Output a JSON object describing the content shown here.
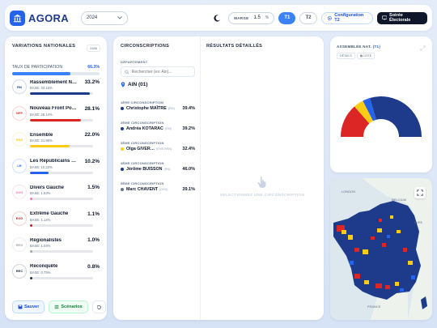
{
  "app": {
    "name": "AGORA",
    "year": "2024"
  },
  "header": {
    "marge_label": "MARGE",
    "marge_value": "1.5",
    "marge_unit": "%",
    "tab_t1": "T1",
    "tab_t2": "T2",
    "config_label": "Configuration T2",
    "soiree_label": "Soirée Électorale"
  },
  "left": {
    "title": "VARIATIONS NATIONALES",
    "badge": "2486",
    "taux_label": "TAUX DE PARTICIPATION",
    "taux_value": "66.3%",
    "taux_fraction": 0.663,
    "parties": [
      {
        "logo": "RN",
        "name": "Rassemblement N…",
        "pct": "33.2%",
        "base": "BASE: 33.16%",
        "share": 0.332,
        "color": "#1e3a8a"
      },
      {
        "logo": "NFP",
        "name": "Nouveau Front Po…",
        "pct": "28.1%",
        "base": "BASE: 28.14%",
        "share": 0.281,
        "color": "#dc2626"
      },
      {
        "logo": "ENS",
        "name": "Ensemble",
        "pct": "22.0%",
        "base": "BASE: 21.98%",
        "share": 0.22,
        "color": "#facc15"
      },
      {
        "logo": "LR",
        "name": "Les Républicains …",
        "pct": "10.2%",
        "base": "BASE: 10.23%",
        "share": 0.102,
        "color": "#2563eb"
      },
      {
        "logo": "DVG",
        "name": "Divers Gauche",
        "pct": "1.5%",
        "base": "BASE: 1.53%",
        "share": 0.015,
        "color": "#f472b6"
      },
      {
        "logo": "EXG",
        "name": "Extrême Gauche",
        "pct": "1.1%",
        "base": "BASE: 1.14%",
        "share": 0.011,
        "color": "#b91c1c"
      },
      {
        "logo": "REG",
        "name": "Régionalistes",
        "pct": "1.0%",
        "base": "BASE: 1.04%",
        "share": 0.01,
        "color": "#a3a3a3"
      },
      {
        "logo": "REC",
        "name": "Reconquête",
        "pct": "0.8%",
        "base": "BASE: 0.75%",
        "share": 0.008,
        "color": "#1e293b"
      }
    ],
    "save_label": "Sauver",
    "scenarios_label": "Scénarios"
  },
  "middle": {
    "circo_title": "CIRCONSCRIPTIONS",
    "results_title": "RÉSULTATS DÉTAILLÉS",
    "dept_label": "DÉPARTEMENT",
    "search_placeholder": "Rechercher (ex: Ain)...",
    "dept_name": "AIN (01)",
    "circos": [
      {
        "label": "1ÈRE CIRCONSCRIPTION",
        "candidate": "Christophe MAÎTRE",
        "nuance": "(RN)",
        "pct": "39.4%",
        "color": "#1e3a8a"
      },
      {
        "label": "2ÈME CIRCONSCRIPTION",
        "candidate": "Andréa KOTARAC",
        "nuance": "(RN)",
        "pct": "39.2%",
        "color": "#1e3a8a"
      },
      {
        "label": "3ÈME CIRCONSCRIPTION",
        "candidate": "Olga GIVER…",
        "nuance": "(ENS REN)",
        "pct": "32.4%",
        "color": "#facc15"
      },
      {
        "label": "4ÈME CIRCONSCRIPTION",
        "candidate": "Jérôme BUISSON",
        "nuance": "(RN)",
        "pct": "46.0%",
        "color": "#1e3a8a"
      },
      {
        "label": "5ÈME CIRCONSCRIPTION",
        "candidate": "Marc CHAVENT",
        "nuance": "(DSV)",
        "pct": "39.1%",
        "color": "#64748b"
      }
    ],
    "empty_text": "SÉLECTIONNEZ UNE CIRCONSCRIPTION"
  },
  "assembly": {
    "title": "ASSEMBLÉE NAT.",
    "round": "(T1)",
    "tab_details": "DÉTAILS",
    "tab_list": "LISTE",
    "chart_data": {
      "type": "pie",
      "shape": "half-donut",
      "segments": [
        {
          "color": "#dc2626",
          "share": 0.27
        },
        {
          "color": "#facc15",
          "share": 0.08
        },
        {
          "color": "#2563eb",
          "share": 0.06
        },
        {
          "color": "#1e3a8a",
          "share": 0.59
        }
      ]
    }
  },
  "map": {
    "labels": {
      "london": "LONDON",
      "belgium": "BELGIUM",
      "eure": "EURE",
      "france": "FRANCE"
    }
  }
}
